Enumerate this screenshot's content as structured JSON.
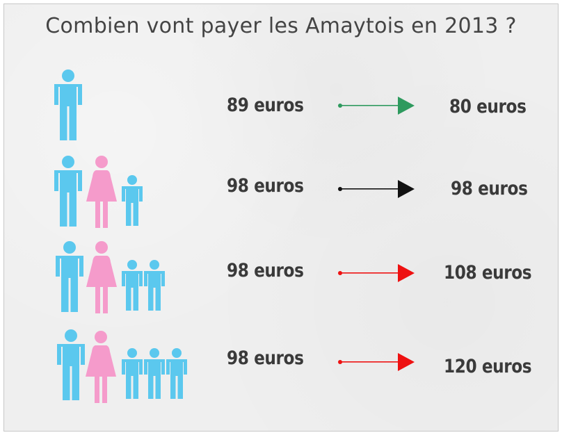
{
  "title": "Combien vont payer les Amaytois en 2013 ?",
  "colors": {
    "man": "#5bc8ee",
    "woman": "#f59bcb",
    "child": "#5bc8ee",
    "arrow_decrease": "#2e9a5e",
    "arrow_same": "#111111",
    "arrow_increase": "#ee1111"
  },
  "rows": [
    {
      "household": [
        "man-icon"
      ],
      "old_price": "89 euros",
      "new_price": "80 euros",
      "trend": "decrease"
    },
    {
      "household": [
        "man-icon",
        "woman-icon",
        "child-icon"
      ],
      "old_price": "98 euros",
      "new_price": "98 euros",
      "trend": "same"
    },
    {
      "household": [
        "man-icon",
        "woman-icon",
        "child-icon",
        "child-icon"
      ],
      "old_price": "98 euros",
      "new_price": "108 euros",
      "trend": "increase"
    },
    {
      "household": [
        "man-icon",
        "woman-icon",
        "child-icon",
        "child-icon",
        "child-icon"
      ],
      "old_price": "98 euros",
      "new_price": "120 euros",
      "trend": "increase"
    }
  ]
}
